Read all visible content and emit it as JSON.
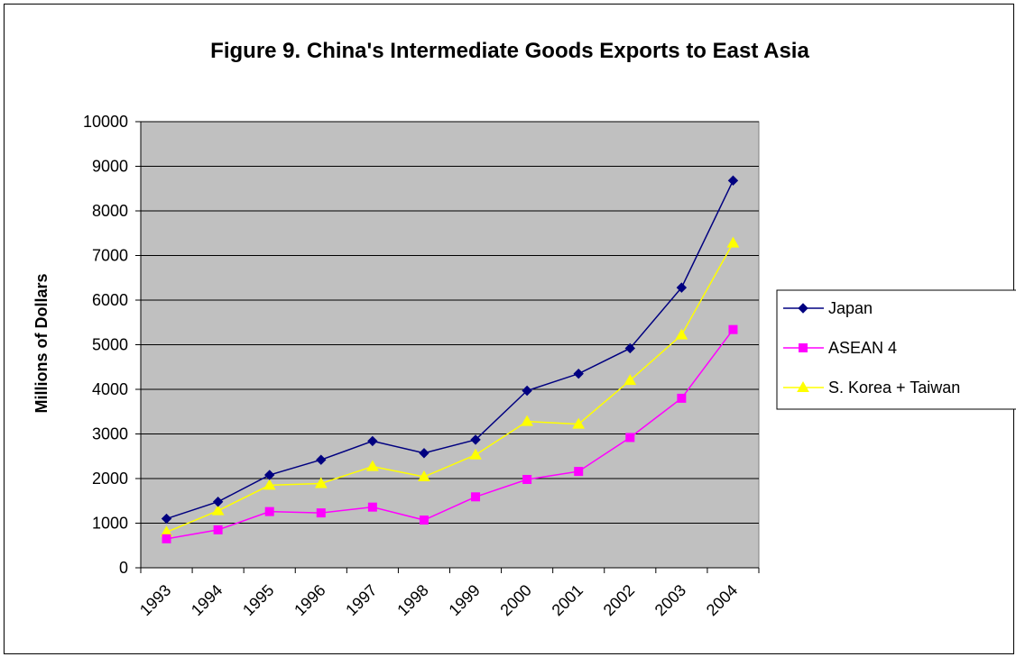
{
  "chart_data": {
    "type": "line",
    "title": "Figure 9. China's Intermediate Goods Exports to East Asia",
    "xlabel": "",
    "ylabel": "Millions of Dollars",
    "ylim": [
      0,
      10000
    ],
    "yticks": [
      0,
      1000,
      2000,
      3000,
      4000,
      5000,
      6000,
      7000,
      8000,
      9000,
      10000
    ],
    "categories": [
      "1993",
      "1994",
      "1995",
      "1996",
      "1997",
      "1998",
      "1999",
      "2000",
      "2001",
      "2002",
      "2003",
      "2004"
    ],
    "grid": true,
    "legend_position": "right",
    "plot_background": "#c0c0c0",
    "series": [
      {
        "name": "Japan",
        "color": "#000080",
        "marker": "diamond",
        "values": [
          1100,
          1480,
          2080,
          2420,
          2840,
          2570,
          2870,
          3970,
          4350,
          4920,
          6280,
          8680
        ]
      },
      {
        "name": "ASEAN 4",
        "color": "#ff00ff",
        "marker": "square",
        "values": [
          650,
          850,
          1260,
          1230,
          1360,
          1070,
          1590,
          1980,
          2160,
          2920,
          3800,
          5340
        ]
      },
      {
        "name": "S. Korea + Taiwan",
        "color": "#ffff00",
        "marker": "triangle",
        "values": [
          800,
          1280,
          1850,
          1890,
          2270,
          2040,
          2530,
          3280,
          3220,
          4200,
          5220,
          7280
        ]
      }
    ]
  }
}
